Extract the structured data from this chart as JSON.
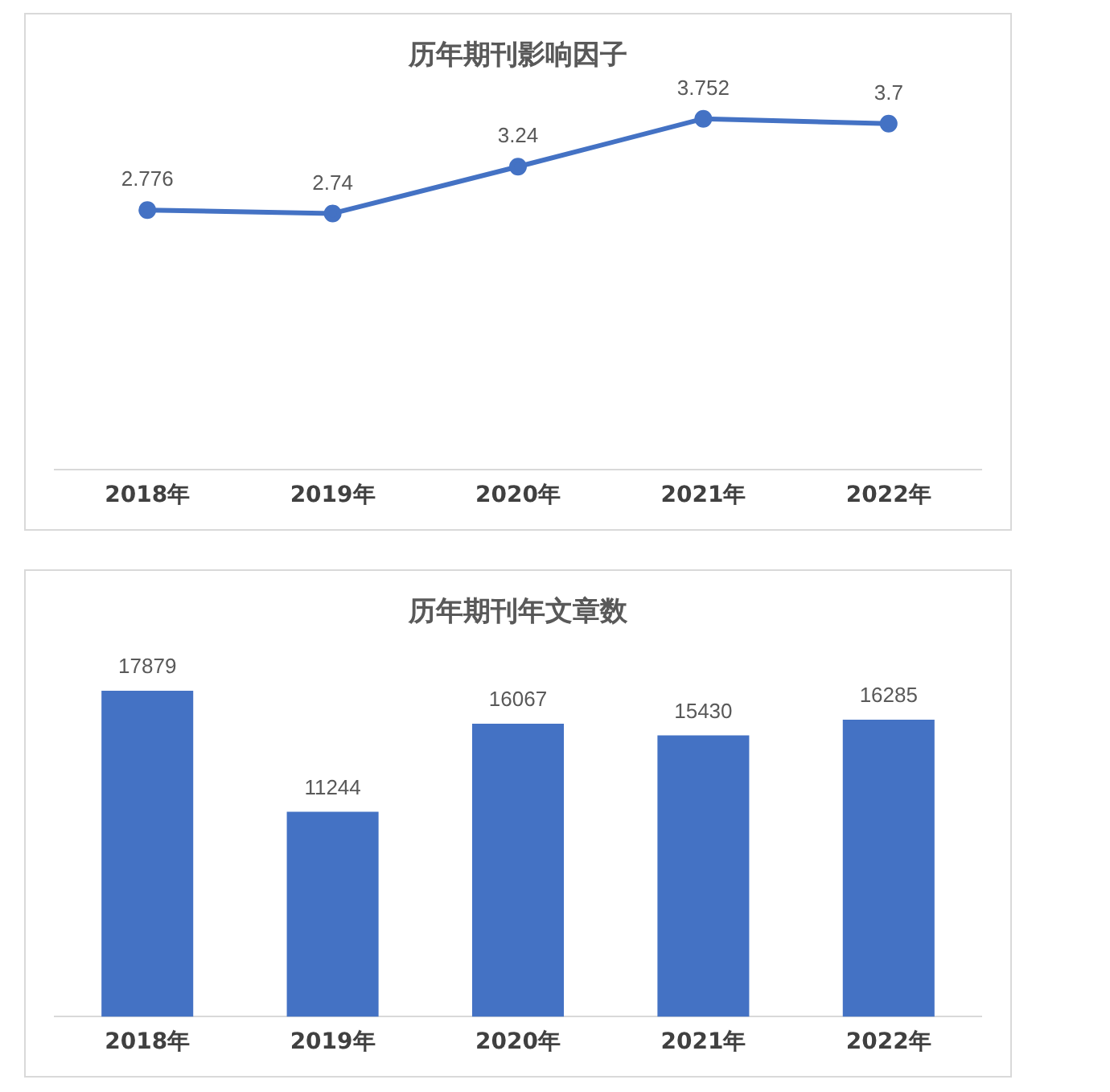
{
  "chart_data": [
    {
      "type": "line",
      "title": "历年期刊影响因子",
      "categories": [
        "2018年",
        "2019年",
        "2020年",
        "2021年",
        "2022年"
      ],
      "values": [
        2.776,
        2.74,
        3.24,
        3.752,
        3.7
      ],
      "color": "#4472c4",
      "data_labels": true,
      "marker": "circle",
      "grid": false,
      "legend": false,
      "tick_labels": "x"
    },
    {
      "type": "bar",
      "title": "历年期刊年文章数",
      "categories": [
        "2018年",
        "2019年",
        "2020年",
        "2021年",
        "2022年"
      ],
      "values": [
        17879,
        11244,
        16067,
        15430,
        16285
      ],
      "color": "#4472c4",
      "data_labels": true,
      "grid": false,
      "legend": false,
      "tick_labels": "x"
    }
  ]
}
